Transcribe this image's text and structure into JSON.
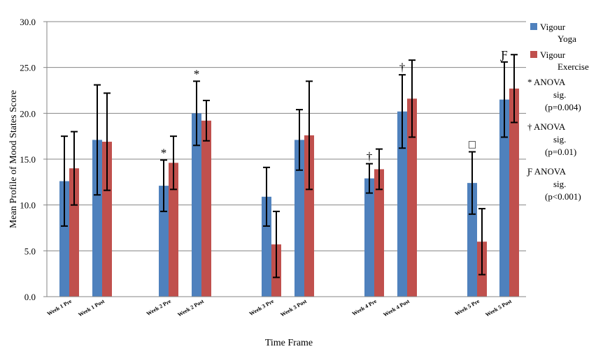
{
  "chart_data": {
    "type": "bar",
    "title": "",
    "xlabel": "Time Frame",
    "ylabel": "Mean Profile of Mood States Score",
    "ylim": [
      0,
      30
    ],
    "yticks": [
      "0.0",
      "5.0",
      "10.0",
      "15.0",
      "20.0",
      "25.0",
      "30.0"
    ],
    "grid": "horizontal",
    "legend_position": "right",
    "categories": [
      "Week 1 Pre",
      "Week 1 Post",
      "Week 2 Pre",
      "Week 2 Post",
      "Week 3 Pre",
      "Week 3 Post",
      "Week 4 Pre",
      "Week 4 Post",
      "Week 5 Pre",
      "Week 5 Post"
    ],
    "series": [
      {
        "name": "Vigour Yoga",
        "name_lines": [
          "Vigour",
          "Yoga"
        ],
        "color": "#4F81BD",
        "values": [
          12.6,
          17.1,
          12.1,
          20.0,
          10.9,
          17.1,
          12.9,
          20.2,
          12.4,
          21.5
        ],
        "errors": [
          4.9,
          6.0,
          2.8,
          3.5,
          3.2,
          3.3,
          1.6,
          4.0,
          3.4,
          4.1
        ]
      },
      {
        "name": "Vigour Exercise",
        "name_lines": [
          "Vigour",
          "Exercise"
        ],
        "color": "#C0504D",
        "values": [
          14.0,
          16.9,
          14.6,
          19.2,
          5.7,
          17.6,
          13.9,
          21.6,
          6.0,
          22.7
        ],
        "errors": [
          4.0,
          5.3,
          2.9,
          2.2,
          3.6,
          5.9,
          2.2,
          4.2,
          3.6,
          3.7
        ]
      }
    ],
    "annotations": [
      {
        "category": "Week 2 Pre",
        "series": "Vigour Yoga",
        "mark": "*"
      },
      {
        "category": "Week 2 Post",
        "series": "Vigour Yoga",
        "mark": "*"
      },
      {
        "category": "Week 4 Pre",
        "series": "Vigour Yoga",
        "mark": "†"
      },
      {
        "category": "Week 4 Post",
        "series": "Vigour Yoga",
        "mark": "†"
      },
      {
        "category": "Week 5 Pre",
        "series": "Vigour Yoga",
        "mark": "□"
      },
      {
        "category": "Week 5 Post",
        "series": "Vigour Yoga",
        "mark": "Ƒ"
      }
    ],
    "notes": [
      {
        "lines": [
          "* ANOVA",
          "sig.",
          "(p=0.004)"
        ]
      },
      {
        "lines": [
          "† ANOVA",
          "sig.",
          "(p=0.01)"
        ]
      },
      {
        "lines": [
          "Ƒ ANOVA",
          "sig.",
          "(p<0.001)"
        ]
      }
    ]
  }
}
